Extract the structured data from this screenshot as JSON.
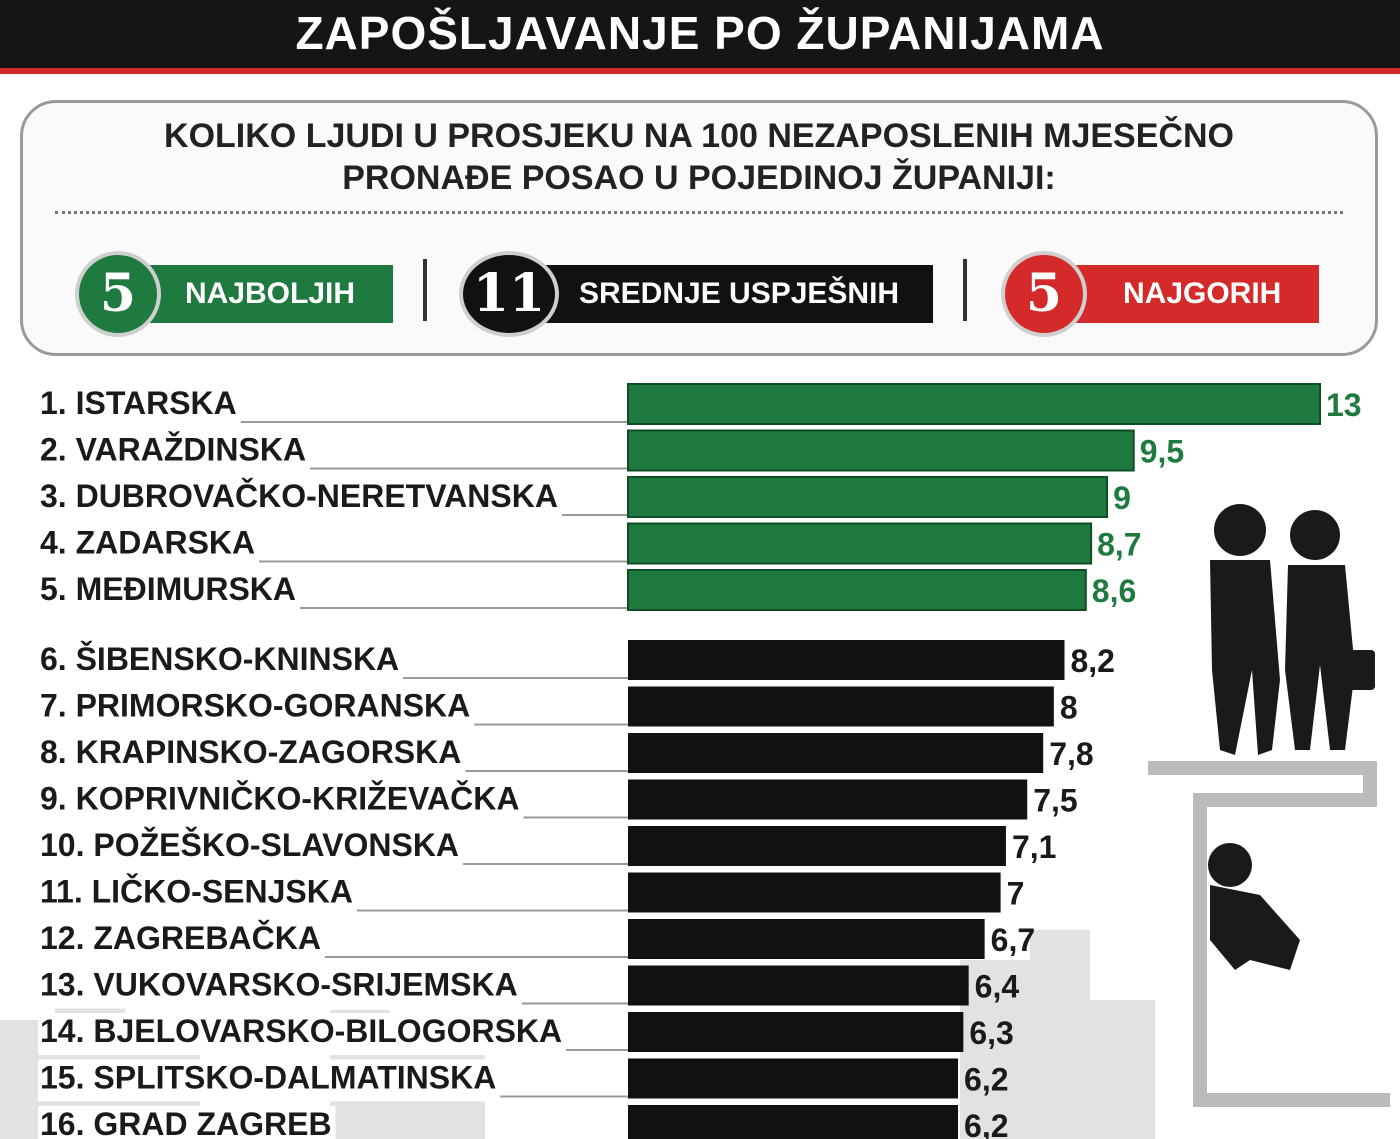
{
  "title": "ZAPOŠLJAVANJE PO ŽUPANIJAMA",
  "subtitle_line1": "KOLIKO LJUDI U PROSJEKU NA 100 NEZAPOSLENIH MJESEČNO",
  "subtitle_line2": "PRONAĐE POSAO U POJEDINOJ ŽUPANIJI:",
  "legend": [
    {
      "number": "5",
      "label": "NAJBOLJIH",
      "color": "#1f7a3f"
    },
    {
      "number": "11",
      "label": "SREDNJE USPJEŠNIH",
      "color": "#111111"
    },
    {
      "number": "5",
      "label": "NAJGORIH",
      "color": "#d42a2a"
    }
  ],
  "colors": {
    "green": "#1f7a3f",
    "black": "#111111",
    "red": "#d42a2a"
  },
  "chart_data": {
    "type": "bar",
    "orientation": "horizontal",
    "categories": [
      "1. ISTARSKA",
      "2. VARAŽDINSKA",
      "3. DUBROVAČKO-NERETVANSKA",
      "4. ZADARSKA",
      "5. MEĐIMURSKA",
      "6. ŠIBENSKO-KNINSKA",
      "7. PRIMORSKO-GORANSKA",
      "8. KRAPINSKO-ZAGORSKA",
      "9. KOPRIVNIČKO-KRIŽEVAČKA",
      "10. POŽEŠKO-SLAVONSKA",
      "11. LIČKO-SENJSKA",
      "12. ZAGREBAČKA",
      "13. VUKOVARSKO-SRIJEMSKA",
      "14. BJELOVARSKO-BILOGORSKA",
      "15. SPLITSKO-DALMATINSKA",
      "16. GRAD ZAGREB"
    ],
    "values": [
      13,
      9.5,
      9,
      8.7,
      8.6,
      8.2,
      8,
      7.8,
      7.5,
      7.1,
      7,
      6.7,
      6.4,
      6.3,
      6.2,
      6.2
    ],
    "value_labels": [
      "13",
      "9,5",
      "9",
      "8,7",
      "8,6",
      "8,2",
      "8",
      "7,8",
      "7,5",
      "7,1",
      "7",
      "6,7",
      "6,4",
      "6,3",
      "6,2",
      "6,2"
    ],
    "groups": [
      "best",
      "best",
      "best",
      "best",
      "best",
      "middle",
      "middle",
      "middle",
      "middle",
      "middle",
      "middle",
      "middle",
      "middle",
      "middle",
      "middle",
      "middle"
    ],
    "xlim": [
      0,
      13
    ]
  }
}
